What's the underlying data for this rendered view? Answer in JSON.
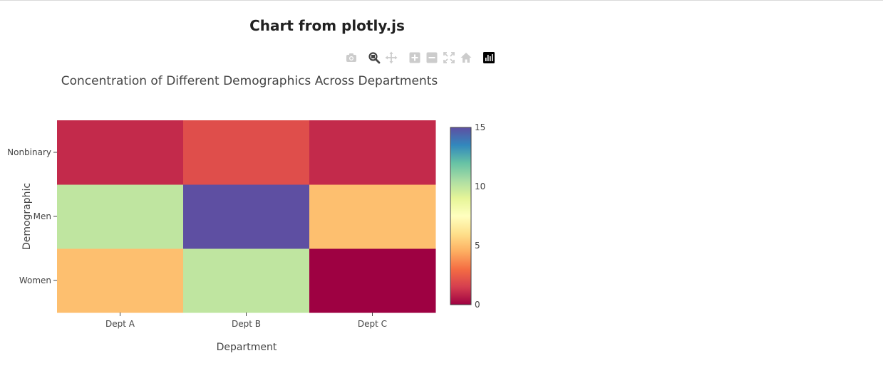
{
  "page": {
    "title": "Chart from plotly.js"
  },
  "modebar": {
    "buttons": [
      {
        "name": "camera-icon",
        "active": false
      },
      {
        "name": "zoom-icon",
        "active": true
      },
      {
        "name": "pan-icon",
        "active": false
      },
      {
        "name": "zoom-in-icon",
        "active": false
      },
      {
        "name": "zoom-out-icon",
        "active": false
      },
      {
        "name": "autoscale-icon",
        "active": false
      },
      {
        "name": "home-icon",
        "active": false
      },
      {
        "name": "plotly-logo-icon",
        "active": false
      }
    ]
  },
  "chart_data": {
    "type": "heatmap",
    "title": "Concentration of Different Demographics Across Departments",
    "xlabel": "Department",
    "ylabel": "Demographic",
    "x": [
      "Dept A",
      "Dept B",
      "Dept C"
    ],
    "y": [
      "Women",
      "Men",
      "Nonbinary"
    ],
    "z": [
      [
        5,
        10,
        0
      ],
      [
        10,
        15,
        5
      ],
      [
        1,
        2,
        1
      ]
    ],
    "zrange": [
      0,
      15
    ],
    "colorscale": "Spectral",
    "colorbar": {
      "ticks": [
        0,
        5,
        10,
        15
      ]
    },
    "grid": false,
    "legend": "none"
  }
}
